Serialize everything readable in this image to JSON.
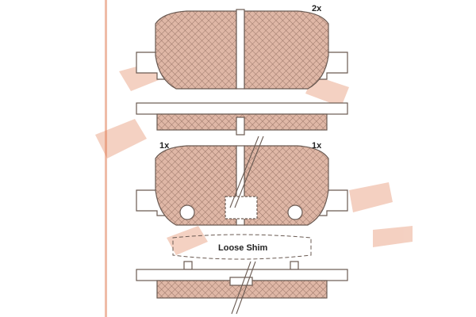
{
  "labels": {
    "qty_top": "2x",
    "qty_left": "1x",
    "qty_right": "1x",
    "loose_shim": "Loose Shim"
  },
  "colors": {
    "line": "#6a5a52",
    "pad_fill": "#dfb7a6",
    "hatch": "#9a7668",
    "watermark": "#e07a50",
    "text": "#222222"
  }
}
